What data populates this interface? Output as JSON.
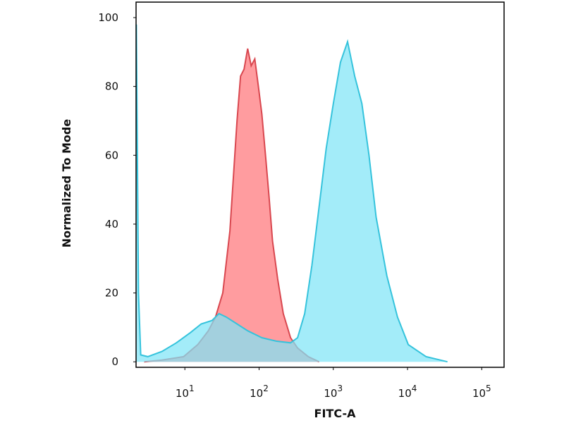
{
  "chart_data": {
    "type": "area",
    "x_label": "FITC-A",
    "y_label": "Normalized To Mode",
    "xscale": "log",
    "xlim": [
      2.2,
      200000
    ],
    "xticks": [
      {
        "value": 10,
        "label": "10",
        "power": "1"
      },
      {
        "value": 100,
        "label": "10",
        "power": "2"
      },
      {
        "value": 1000,
        "label": "10",
        "power": "3"
      },
      {
        "value": 10000,
        "label": "10",
        "power": "4"
      },
      {
        "value": 100000,
        "label": "10",
        "power": "5"
      }
    ],
    "ylim": [
      -1.6,
      104.5
    ],
    "yticks": [
      0,
      20,
      40,
      60,
      80,
      100
    ],
    "grid": false,
    "series": [
      {
        "color": "#d9474f",
        "fill": "#ff9c9f",
        "x": [
          2.83,
          4.9,
          9.6,
          14.9,
          20.7,
          25.9,
          32.4,
          40.4,
          50.4,
          56.2,
          62.8,
          70.2,
          78.3,
          87.5,
          97.8,
          109,
          122,
          136,
          152,
          178,
          212,
          265,
          330,
          460,
          643
        ],
        "values": [
          0,
          0.5,
          1.5,
          5,
          9,
          13,
          20,
          38,
          70,
          83,
          85,
          91,
          86,
          88,
          80,
          72,
          60,
          48,
          35,
          24,
          14,
          7,
          4,
          1.5,
          0
        ]
      },
      {
        "color": "#35c3dc",
        "fill": "#7fe4f7",
        "x": [
          2.22,
          2.37,
          2.54,
          3.16,
          4.92,
          7.67,
          11.9,
          16.6,
          23.2,
          28.9,
          36.1,
          50.4,
          70.2,
          109,
          170,
          265,
          330,
          412,
          515,
          643,
          802,
          1000,
          1248,
          1556,
          1941,
          2427,
          3027,
          3776,
          5260,
          7330,
          10230,
          17800,
          34500
        ],
        "values": [
          98,
          20,
          2,
          1.5,
          3,
          5.5,
          8.5,
          11,
          12,
          14,
          13,
          11,
          9,
          7,
          6,
          5.5,
          7,
          14,
          28,
          45,
          62,
          75,
          87,
          93,
          83,
          75,
          60,
          42,
          25,
          13,
          5,
          1.5,
          0
        ]
      }
    ]
  }
}
